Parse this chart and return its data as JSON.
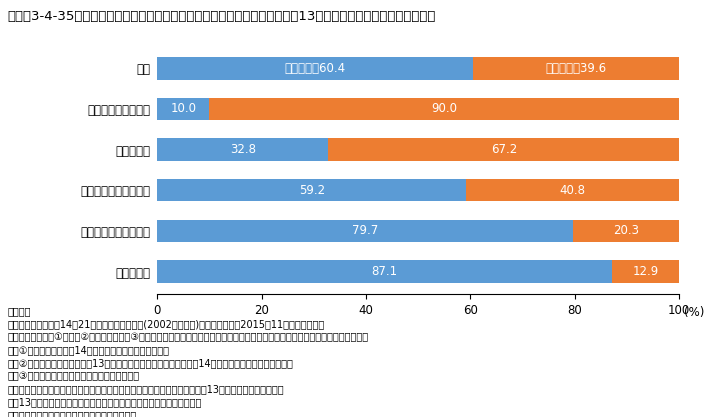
{
  "title": "【図袅3-4-35　子どもがいる夫婦の夫の休日の家事・育児時間別にみたこの13年間の第２子以降の出生の状況】",
  "categories": [
    "総数",
    "家事・育児時間なし",
    "２時間未満",
    "２時間以上４時間未満",
    "４時間以上６時間未満",
    "６時間以上"
  ],
  "values_blue": [
    60.4,
    10.0,
    32.8,
    59.2,
    79.7,
    87.1
  ],
  "values_orange": [
    39.6,
    90.0,
    67.2,
    40.8,
    20.3,
    12.9
  ],
  "label_blue": "出生あり",
  "label_orange": "出生なし",
  "color_blue": "#5B9BD5",
  "color_orange": "#ED7D31",
  "xlim": [
    0,
    100
  ],
  "xticks": [
    0,
    20,
    40,
    60,
    80,
    100
  ],
  "xlabel_text": "(%)",
  "notes": [
    "（備考）",
    "１．厚生労働省「第14回21世紀成年者縦断調査(2002年成年者)」（調査年月：2015年11月）より作成。",
    "２．集計対象は、①または②に該当し、かつ③に該当する同居夫婦である。ただし、妻の出生前データが得られていない夫婦は除く。",
    "　　①第１回調査から第14回調査まで双方が回答した夫婦",
    "　　②第１回調査時に独身で第13回調査までの間に結婚し、結婚後第14回調査まで双方が回答した夫婦",
    "　　③出生前調査時に子どもが１人以上いる夫婦",
    "３．家事・育児時間は、「出生あり」は出生前調査時の、「出生なし」は第13回調査時の状況である。",
    "４．13年間で２人以上出生ありの場合は、末子について計上している。",
    "５．「総数」には、家事・育児時間不詳を含む。"
  ],
  "bar_height": 0.55,
  "title_fontsize": 9.5,
  "label_fontsize": 8.5,
  "tick_fontsize": 8.5,
  "note_fontsize": 7,
  "background_color": "#FFFFFF",
  "text_dark": "#333333"
}
